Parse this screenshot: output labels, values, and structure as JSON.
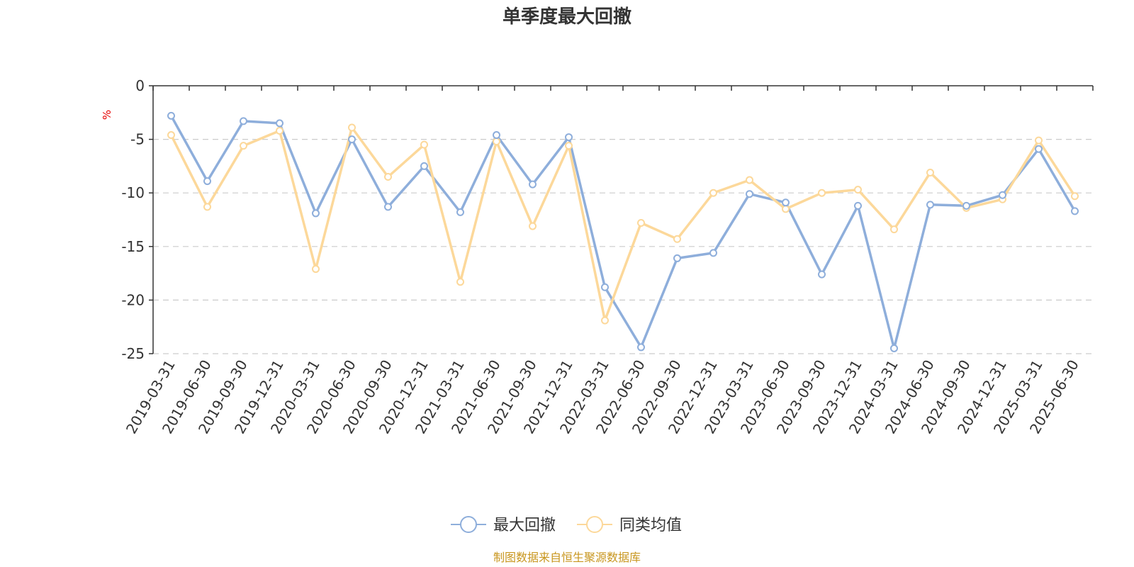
{
  "chart_data": {
    "type": "line",
    "title": "单季度最大回撤",
    "ylabel": "%",
    "ylim": [
      -25,
      0
    ],
    "yticks": [
      0,
      -5,
      -10,
      -15,
      -20,
      -25
    ],
    "grid": true,
    "legend": "bottom-center",
    "categories": [
      "2019-03-31",
      "2019-06-30",
      "2019-09-30",
      "2019-12-31",
      "2020-03-31",
      "2020-06-30",
      "2020-09-30",
      "2020-12-31",
      "2021-03-31",
      "2021-06-30",
      "2021-09-30",
      "2021-12-31",
      "2022-03-31",
      "2022-06-30",
      "2022-09-30",
      "2022-12-31",
      "2023-03-31",
      "2023-06-30",
      "2023-09-30",
      "2023-12-31",
      "2024-03-31",
      "2024-06-30",
      "2024-09-30",
      "2024-12-31",
      "2025-03-31",
      "2025-06-30"
    ],
    "series": [
      {
        "name": "最大回撤",
        "color": "#8eaedb",
        "values": [
          -2.8,
          -8.9,
          -3.3,
          -3.5,
          -11.9,
          -5.0,
          -11.3,
          -7.5,
          -11.8,
          -4.6,
          -9.2,
          -4.8,
          -18.8,
          -24.4,
          -16.1,
          -15.6,
          -10.1,
          -10.9,
          -17.6,
          -11.2,
          -24.5,
          -11.1,
          -11.2,
          -10.2,
          -5.9,
          -11.7
        ]
      },
      {
        "name": "同类均值",
        "color": "#fcd89a",
        "values": [
          -4.6,
          -11.3,
          -5.6,
          -4.2,
          -17.1,
          -3.9,
          -8.5,
          -5.5,
          -18.3,
          -5.2,
          -13.1,
          -5.6,
          -21.9,
          -12.8,
          -14.3,
          -10.0,
          -8.8,
          -11.5,
          -10.0,
          -9.7,
          -13.4,
          -8.1,
          -11.4,
          -10.6,
          -5.1,
          -10.3
        ]
      }
    ]
  },
  "footer": {
    "source": "制图数据来自恒生聚源数据库"
  }
}
